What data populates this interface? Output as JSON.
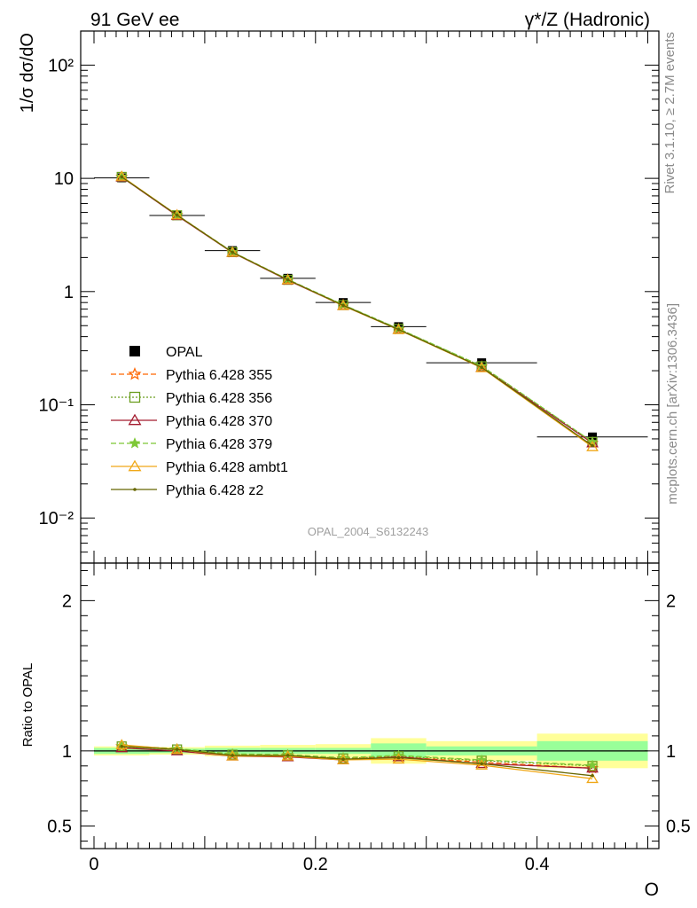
{
  "header": {
    "left": "91 GeV ee",
    "right": "γ*/Z (Hadronic)"
  },
  "side_text": {
    "rivet": "Rivet 3.1.10, ≥ 2.7M events",
    "mcplots": "mcplots.cern.ch [arXiv:1306.3436]"
  },
  "watermark": "OPAL_2004_S6132243",
  "chart_data": [
    {
      "type": "line",
      "title": "",
      "xlabel": "",
      "ylabel": "1/σ dσ/dO",
      "yscale": "log",
      "ylim": [
        0.004,
        200
      ],
      "xlim": [
        -0.012,
        0.51
      ],
      "x": [
        0.025,
        0.075,
        0.125,
        0.175,
        0.225,
        0.275,
        0.35,
        0.45
      ],
      "y_tick_labels": [
        "10⁻²",
        "10⁻¹",
        "1",
        "10",
        "10²"
      ],
      "legend_position": "middle-left",
      "data": {
        "name": "OPAL",
        "x": [
          0.025,
          0.075,
          0.125,
          0.175,
          0.225,
          0.275,
          0.35,
          0.45
        ],
        "y": [
          10.1,
          4.7,
          2.3,
          1.31,
          0.8,
          0.49,
          0.235,
          0.052
        ],
        "xerr": [
          0.025,
          0.025,
          0.025,
          0.025,
          0.025,
          0.025,
          0.05,
          0.05
        ]
      },
      "series": [
        {
          "name": "Pythia 6.428 355",
          "color": "#ff6600",
          "dash": "6,3",
          "marker": "star-open",
          "values": [
            10.3,
            4.72,
            2.22,
            1.27,
            0.76,
            0.465,
            0.217,
            0.046
          ]
        },
        {
          "name": "Pythia 6.428 356",
          "color": "#6b9e1f",
          "dash": "2,2",
          "marker": "square-open",
          "values": [
            10.3,
            4.72,
            2.23,
            1.27,
            0.76,
            0.468,
            0.219,
            0.047
          ]
        },
        {
          "name": "Pythia 6.428 370",
          "color": "#a31a2e",
          "dash": "",
          "marker": "triangle-open",
          "values": [
            10.25,
            4.68,
            2.21,
            1.26,
            0.75,
            0.462,
            0.214,
            0.046
          ]
        },
        {
          "name": "Pythia 6.428 379",
          "color": "#7ec836",
          "dash": "6,3",
          "marker": "star-filled",
          "values": [
            10.35,
            4.75,
            2.24,
            1.28,
            0.765,
            0.47,
            0.22,
            0.047
          ]
        },
        {
          "name": "Pythia 6.428 ambt1",
          "color": "#f0a818",
          "dash": "",
          "marker": "triangle-open",
          "values": [
            10.4,
            4.74,
            2.22,
            1.27,
            0.75,
            0.46,
            0.212,
            0.0425
          ]
        },
        {
          "name": "Pythia 6.428 z2",
          "color": "#666600",
          "dash": "",
          "marker": "dot",
          "values": [
            10.3,
            4.73,
            2.22,
            1.27,
            0.755,
            0.462,
            0.214,
            0.0435
          ]
        }
      ]
    },
    {
      "type": "line",
      "title": "",
      "xlabel": "O",
      "ylabel": "Ratio to OPAL",
      "yscale": "linear",
      "ylim": [
        0.35,
        2.25
      ],
      "xlim": [
        -0.012,
        0.51
      ],
      "y_ticks": [
        0.5,
        1,
        2
      ],
      "y_tick_labels": [
        "0.5",
        "1",
        "2"
      ],
      "x_ticks": [
        0,
        0.2,
        0.4
      ],
      "x_tick_labels": [
        "0",
        "0.2",
        "0.4"
      ],
      "bands": [
        {
          "x0": 0.0,
          "x1": 0.05,
          "inner": 0.02,
          "outer": 0.03
        },
        {
          "x0": 0.05,
          "x1": 0.1,
          "inner": 0.015,
          "outer": 0.025
        },
        {
          "x0": 0.1,
          "x1": 0.15,
          "inner": 0.02,
          "outer": 0.035
        },
        {
          "x0": 0.15,
          "x1": 0.2,
          "inner": 0.02,
          "outer": 0.04
        },
        {
          "x0": 0.2,
          "x1": 0.25,
          "inner": 0.02,
          "outer": 0.045
        },
        {
          "x0": 0.25,
          "x1": 0.3,
          "inner": 0.05,
          "outer": 0.085
        },
        {
          "x0": 0.3,
          "x1": 0.4,
          "inner": 0.03,
          "outer": 0.065
        },
        {
          "x0": 0.4,
          "x1": 0.5,
          "inner": 0.065,
          "outer": 0.115
        }
      ],
      "series": [
        {
          "name": "Pythia 6.428 355",
          "color": "#ff6600",
          "dash": "6,3",
          "marker": "star-open",
          "values": [
            1.03,
            1.01,
            0.975,
            0.97,
            0.95,
            0.96,
            0.925,
            0.885
          ]
        },
        {
          "name": "Pythia 6.428 356",
          "color": "#6b9e1f",
          "dash": "2,2",
          "marker": "square-open",
          "values": [
            1.03,
            1.01,
            0.975,
            0.97,
            0.95,
            0.965,
            0.935,
            0.9
          ]
        },
        {
          "name": "Pythia 6.428 370",
          "color": "#a31a2e",
          "dash": "",
          "marker": "triangle-open",
          "values": [
            1.02,
            1.0,
            0.965,
            0.96,
            0.94,
            0.96,
            0.915,
            0.885
          ]
        },
        {
          "name": "Pythia 6.428 379",
          "color": "#7ec836",
          "dash": "6,3",
          "marker": "star-filled",
          "values": [
            1.035,
            1.015,
            0.98,
            0.975,
            0.955,
            0.97,
            0.94,
            0.905
          ]
        },
        {
          "name": "Pythia 6.428 ambt1",
          "color": "#f0a818",
          "dash": "",
          "marker": "triangle-open",
          "values": [
            1.04,
            1.01,
            0.965,
            0.965,
            0.94,
            0.945,
            0.905,
            0.815
          ]
        },
        {
          "name": "Pythia 6.428 z2",
          "color": "#666600",
          "dash": "",
          "marker": "dot",
          "values": [
            1.03,
            1.01,
            0.97,
            0.97,
            0.945,
            0.955,
            0.915,
            0.835
          ]
        }
      ]
    }
  ]
}
